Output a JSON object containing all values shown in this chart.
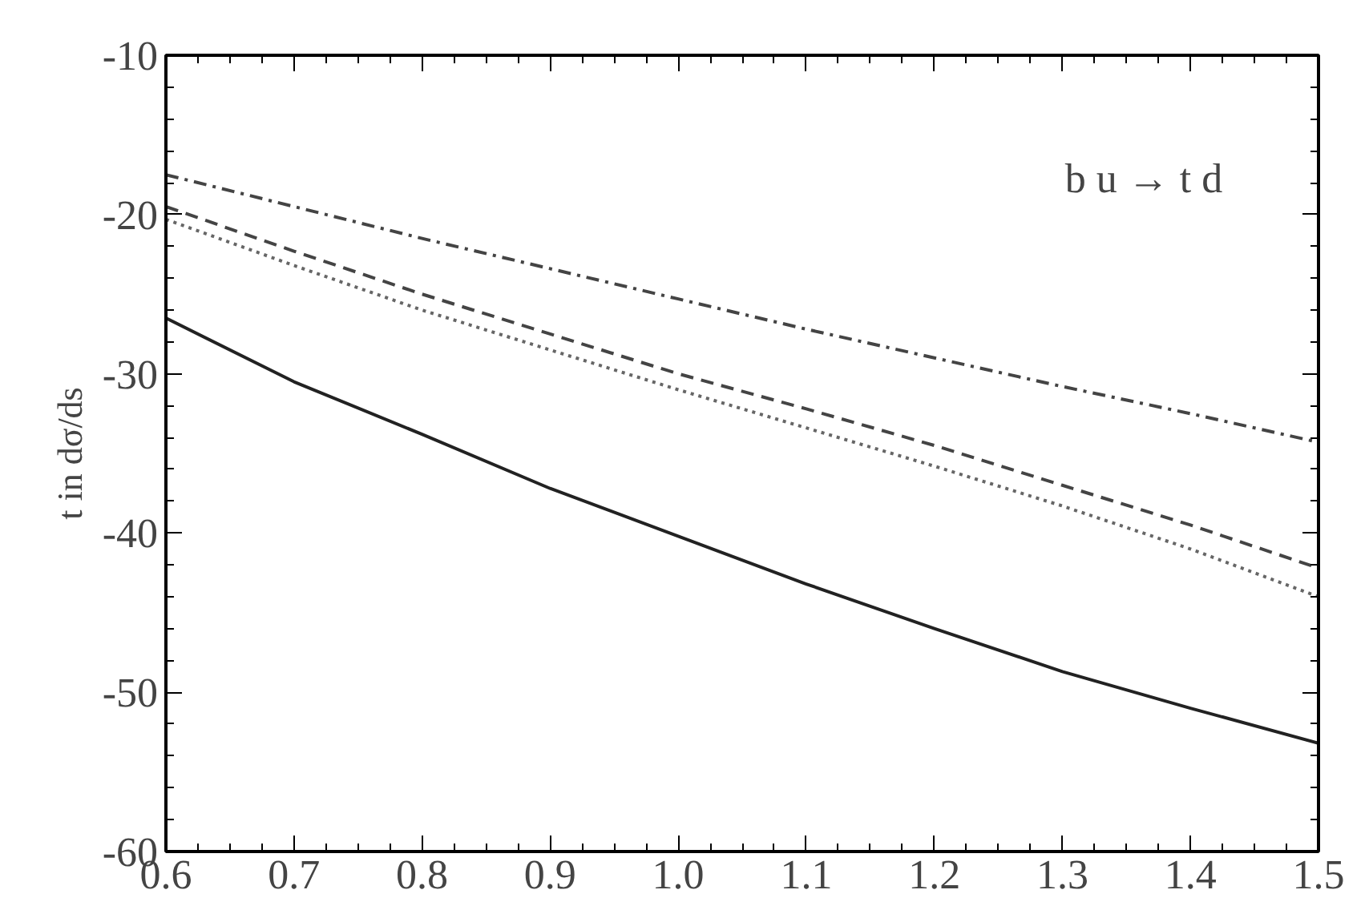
{
  "chart_data": {
    "type": "line",
    "ylabel": "t in dσ/ds",
    "x": [
      0.6,
      0.7,
      0.8,
      0.9,
      1.0,
      1.1,
      1.2,
      1.3,
      1.4,
      1.5
    ],
    "series": [
      {
        "color": "#222222",
        "line_style": "solid",
        "values": [
          -26.5,
          -30.5,
          -33.8,
          -37.2,
          -40.2,
          -43.2,
          -46,
          -48.7,
          -51,
          -53.2
        ]
      },
      {
        "color": "#444444",
        "line_style": "dashdot",
        "values": [
          -17.5,
          -19.5,
          -21.5,
          -23.4,
          -25.3,
          -27.2,
          -29,
          -30.8,
          -32.5,
          -34.3
        ]
      },
      {
        "color": "#444444",
        "line_style": "dashed",
        "values": [
          -19.5,
          -22.3,
          -25,
          -27.5,
          -30,
          -32.2,
          -34.5,
          -37,
          -39.5,
          -42.2
        ]
      },
      {
        "color": "#666666",
        "line_style": "dotted",
        "values": [
          -20.3,
          -23.2,
          -26,
          -28.5,
          -31,
          -33.4,
          -35.8,
          -38.3,
          -41,
          -44
        ]
      }
    ],
    "xlim": [
      0.6,
      1.5
    ],
    "ylim": [
      -60,
      -10
    ],
    "xticks": [
      0.6,
      0.7,
      0.8,
      0.9,
      {
        "value": 1.0,
        "label": "1.0"
      },
      1.1,
      1.2,
      1.3,
      1.4,
      1.5
    ],
    "yticks": [
      -60,
      -50,
      -40,
      -30,
      -20,
      -10
    ],
    "annotations": [
      "b u → t d"
    ],
    "grid": false,
    "marker": "none"
  }
}
